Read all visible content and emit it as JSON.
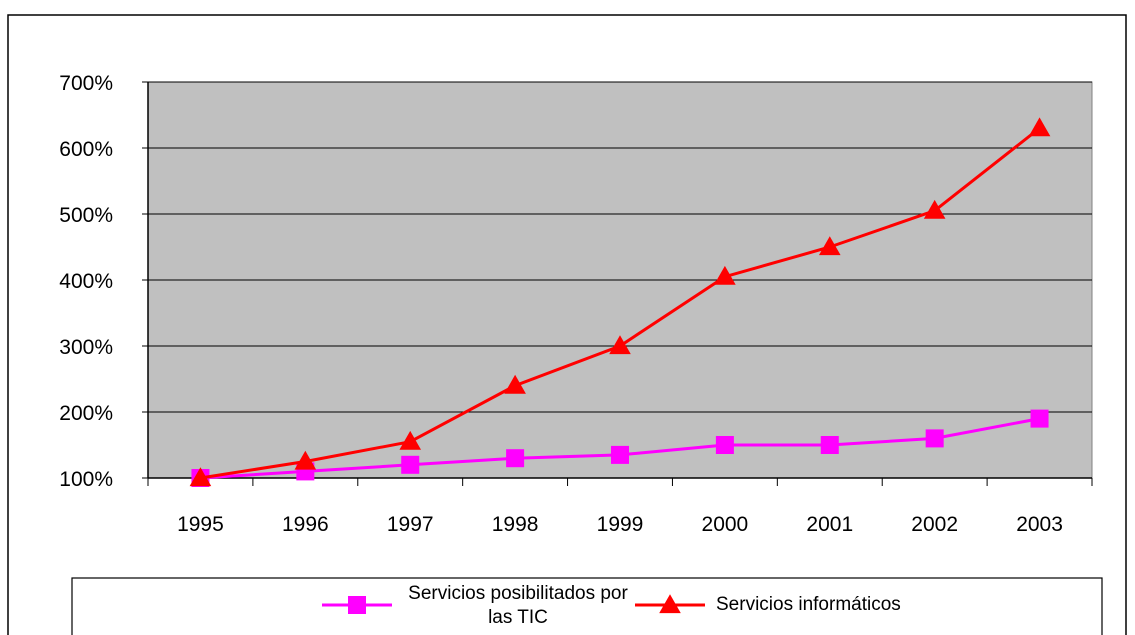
{
  "chart_data": {
    "type": "line",
    "categories": [
      "1995",
      "1996",
      "1997",
      "1998",
      "1999",
      "2000",
      "2001",
      "2002",
      "2003"
    ],
    "y_ticks": [
      "100%",
      "200%",
      "300%",
      "400%",
      "500%",
      "600%",
      "700%"
    ],
    "ylim": [
      100,
      700
    ],
    "y_unit": "%",
    "grid": true,
    "legend_position": "bottom",
    "plot_background": "#c0c0c0",
    "series": [
      {
        "name": "Servicios posibilitados por las TIC",
        "name_lines": [
          "Servicios posibilitados por",
          "las TIC"
        ],
        "color": "#ff00ff",
        "marker": "square",
        "values": [
          100,
          110,
          120,
          130,
          135,
          150,
          150,
          160,
          190
        ]
      },
      {
        "name": "Servicios informáticos",
        "name_lines": [
          "Servicios informáticos"
        ],
        "color": "#ff0000",
        "marker": "triangle",
        "values": [
          100,
          125,
          155,
          240,
          300,
          405,
          450,
          505,
          630
        ]
      }
    ]
  }
}
